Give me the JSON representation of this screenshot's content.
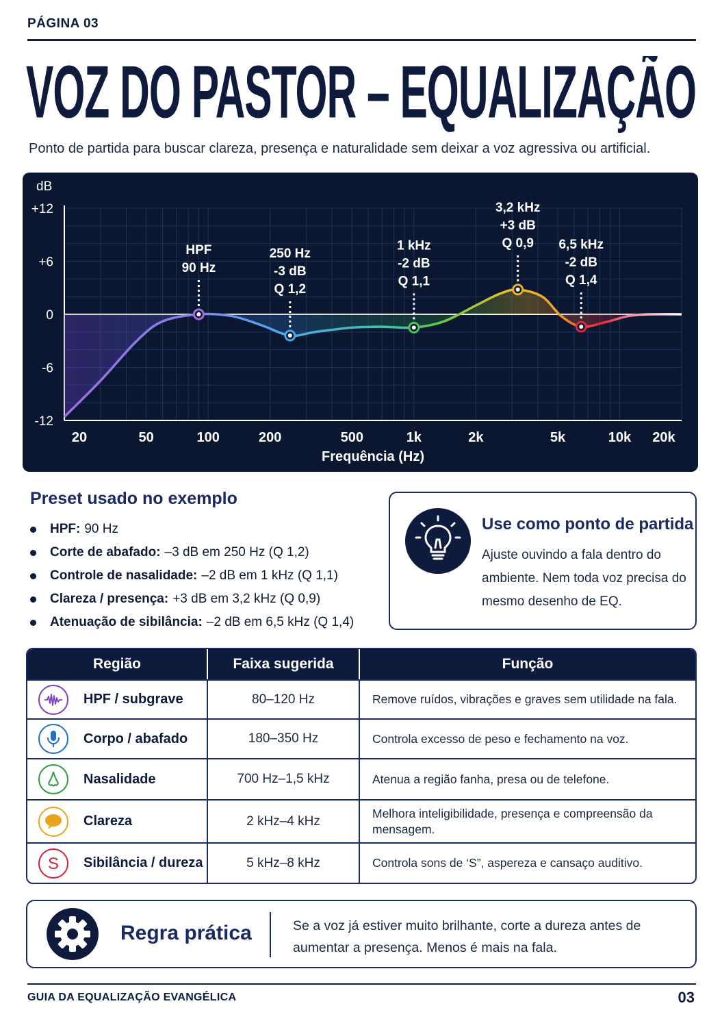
{
  "header": {
    "page_label": "PÁGINA 03",
    "title": "VOZ DO PASTOR – EQUALIZAÇÃO PRÁTICA",
    "subtitle": "Ponto de partida para buscar clareza, presença e naturalidade sem deixar a voz agressiva ou artificial."
  },
  "chart_data": {
    "type": "line",
    "xlabel": "Frequência (Hz)",
    "ylabel": "dB",
    "x_scale": "log",
    "xlim": [
      20,
      20000
    ],
    "ylim": [
      -12,
      12
    ],
    "x_ticks": [
      {
        "value": 20,
        "label": "20"
      },
      {
        "value": 50,
        "label": "50"
      },
      {
        "value": 100,
        "label": "100"
      },
      {
        "value": 200,
        "label": "200"
      },
      {
        "value": 500,
        "label": "500"
      },
      {
        "value": 1000,
        "label": "1k"
      },
      {
        "value": 2000,
        "label": "2k"
      },
      {
        "value": 5000,
        "label": "5k"
      },
      {
        "value": 10000,
        "label": "10k"
      },
      {
        "value": 20000,
        "label": "20k"
      }
    ],
    "y_ticks": [
      {
        "value": 12,
        "label": "+12"
      },
      {
        "value": 6,
        "label": "+6"
      },
      {
        "value": 0,
        "label": "0"
      },
      {
        "value": -6,
        "label": "-6"
      },
      {
        "value": -12,
        "label": "-12"
      }
    ],
    "grid": true,
    "curve": [
      {
        "x": 20,
        "y": -11.6
      },
      {
        "x": 30,
        "y": -7.5
      },
      {
        "x": 45,
        "y": -3
      },
      {
        "x": 60,
        "y": -0.8
      },
      {
        "x": 90,
        "y": 0
      },
      {
        "x": 130,
        "y": -0.2
      },
      {
        "x": 180,
        "y": -1.2
      },
      {
        "x": 250,
        "y": -2.4
      },
      {
        "x": 330,
        "y": -2
      },
      {
        "x": 500,
        "y": -1.5
      },
      {
        "x": 700,
        "y": -1.4
      },
      {
        "x": 1000,
        "y": -1.5
      },
      {
        "x": 1400,
        "y": -0.8
      },
      {
        "x": 2000,
        "y": 1
      },
      {
        "x": 2600,
        "y": 2.3
      },
      {
        "x": 3200,
        "y": 2.8
      },
      {
        "x": 4200,
        "y": 2
      },
      {
        "x": 5200,
        "y": -0.2
      },
      {
        "x": 6500,
        "y": -1.4
      },
      {
        "x": 8500,
        "y": -0.9
      },
      {
        "x": 11000,
        "y": -0.2
      },
      {
        "x": 14000,
        "y": 0
      },
      {
        "x": 20000,
        "y": 0
      }
    ],
    "points": [
      {
        "x": 90,
        "y": 0,
        "color": "#a46be0",
        "label_lines": [
          "HPF",
          "90 Hz"
        ]
      },
      {
        "x": 250,
        "y": -2.4,
        "color": "#4aa8e8",
        "label_lines": [
          "250 Hz",
          "-3 dB",
          "Q 1,2"
        ]
      },
      {
        "x": 1000,
        "y": -1.5,
        "color": "#4cc35a",
        "label_lines": [
          "1 kHz",
          "-2 dB",
          "Q 1,1"
        ]
      },
      {
        "x": 3200,
        "y": 2.8,
        "color": "#e8b22a",
        "label_lines": [
          "3,2 kHz",
          "+3 dB",
          "Q 0,9"
        ]
      },
      {
        "x": 6500,
        "y": -1.4,
        "color": "#e0283c",
        "label_lines": [
          "6,5 kHz",
          "-2 dB",
          "Q 1,4"
        ]
      }
    ]
  },
  "preset": {
    "title": "Preset usado no exemplo",
    "items": [
      {
        "label": "HPF:",
        "value": "90 Hz"
      },
      {
        "label": "Corte de abafado:",
        "value": "–3 dB em 250 Hz (Q 1,2)"
      },
      {
        "label": "Controle de nasalidade:",
        "value": "–2 dB em 1 kHz (Q 1,1)"
      },
      {
        "label": "Clareza / presença:",
        "value": "+3 dB em 3,2 kHz (Q 0,9)"
      },
      {
        "label": "Atenuação de sibilância:",
        "value": "–2 dB em 6,5 kHz (Q 1,4)"
      }
    ]
  },
  "tip": {
    "title": "Use como ponto de partida",
    "body": "Ajuste ouvindo a fala dentro do ambiente. Nem toda voz precisa do mesmo desenho de EQ.",
    "icon": "lightbulb-icon"
  },
  "table": {
    "headers": [
      "Região",
      "Faixa sugerida",
      "Função"
    ],
    "rows": [
      {
        "region": "HPF / subgrave",
        "range": "80–120 Hz",
        "function": "Remove ruídos, vibrações e graves sem utilidade na fala.",
        "icon": "waveform-icon",
        "color": "#7b3fc4"
      },
      {
        "region": "Corpo / abafado",
        "range": "180–350 Hz",
        "function": "Controla excesso de peso e fechamento na voz.",
        "icon": "microphone-icon",
        "color": "#1f6fc9"
      },
      {
        "region": "Nasalidade",
        "range": "700 Hz–1,5 kHz",
        "function": "Atenua a região fanha, presa ou de telefone.",
        "icon": "nose-icon",
        "color": "#2e9b3c"
      },
      {
        "region": "Clareza",
        "range": "2 kHz–4 kHz",
        "function": "Melhora inteligibilidade, presença e compreensão da mensagem.",
        "icon": "speech-bubble-icon",
        "color": "#e8a41c"
      },
      {
        "region": "Sibilância / dureza",
        "range": "5 kHz–8 kHz",
        "function": "Controla sons de ‘S”, aspereza e cansaço auditivo.",
        "icon": "letter-s-icon",
        "color": "#d6203a"
      }
    ]
  },
  "rule": {
    "title": "Regra prática",
    "text": "Se a voz já estiver muito brilhante, corte a dureza antes de aumentar a presença. Menos é mais na fala.",
    "icon": "gear-icon"
  },
  "footer": {
    "left": "GUIA DA EQUALIZAÇÃO EVANGÉLICA",
    "right": "03"
  }
}
